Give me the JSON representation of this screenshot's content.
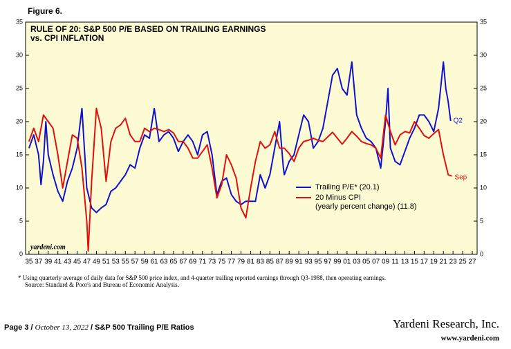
{
  "figure_label": "Figure 6.",
  "chart_data": {
    "type": "line",
    "title": [
      "RULE OF 20: S&P 500 P/E BASED ON TRAILING EARNINGS",
      "vs. CPI INFLATION"
    ],
    "xlim": [
      1934.3,
      2028
    ],
    "ylim": [
      0,
      35
    ],
    "yticks": [
      0,
      5,
      10,
      15,
      20,
      25,
      30,
      35
    ],
    "xticks": [
      {
        "value": 1935,
        "label": "35"
      },
      {
        "value": 1937,
        "label": "37"
      },
      {
        "value": 1939,
        "label": "39"
      },
      {
        "value": 1941,
        "label": "41"
      },
      {
        "value": 1943,
        "label": "43"
      },
      {
        "value": 1945,
        "label": "45"
      },
      {
        "value": 1947,
        "label": "47"
      },
      {
        "value": 1949,
        "label": "49"
      },
      {
        "value": 1951,
        "label": "51"
      },
      {
        "value": 1953,
        "label": "53"
      },
      {
        "value": 1955,
        "label": "55"
      },
      {
        "value": 1957,
        "label": "57"
      },
      {
        "value": 1959,
        "label": "59"
      },
      {
        "value": 1961,
        "label": "61"
      },
      {
        "value": 1963,
        "label": "63"
      },
      {
        "value": 1965,
        "label": "65"
      },
      {
        "value": 1967,
        "label": "67"
      },
      {
        "value": 1969,
        "label": "69"
      },
      {
        "value": 1971,
        "label": "71"
      },
      {
        "value": 1973,
        "label": "73"
      },
      {
        "value": 1975,
        "label": "75"
      },
      {
        "value": 1977,
        "label": "77"
      },
      {
        "value": 1979,
        "label": "79"
      },
      {
        "value": 1981,
        "label": "81"
      },
      {
        "value": 1983,
        "label": "83"
      },
      {
        "value": 1985,
        "label": "85"
      },
      {
        "value": 1987,
        "label": "87"
      },
      {
        "value": 1989,
        "label": "89"
      },
      {
        "value": 1991,
        "label": "91"
      },
      {
        "value": 1993,
        "label": "93"
      },
      {
        "value": 1995,
        "label": "95"
      },
      {
        "value": 1997,
        "label": "97"
      },
      {
        "value": 1999,
        "label": "99"
      },
      {
        "value": 2001,
        "label": "01"
      },
      {
        "value": 2003,
        "label": "03"
      },
      {
        "value": 2005,
        "label": "05"
      },
      {
        "value": 2007,
        "label": "07"
      },
      {
        "value": 2009,
        "label": "09"
      },
      {
        "value": 2011,
        "label": "11"
      },
      {
        "value": 2013,
        "label": "13"
      },
      {
        "value": 2015,
        "label": "15"
      },
      {
        "value": 2017,
        "label": "17"
      },
      {
        "value": 2019,
        "label": "19"
      },
      {
        "value": 2021,
        "label": "21"
      },
      {
        "value": 2023,
        "label": "23"
      },
      {
        "value": 2025,
        "label": "25"
      },
      {
        "value": 2027,
        "label": "27"
      }
    ],
    "series": [
      {
        "name": [
          "Trailing P/E* (20.1)"
        ],
        "color": "#1010d0",
        "end_label": "Q2",
        "x": [
          1935,
          1936,
          1937,
          1937.5,
          1938,
          1938.5,
          1939,
          1940,
          1941,
          1942,
          1943,
          1944,
          1945,
          1946,
          1946.5,
          1947,
          1948,
          1949,
          1950,
          1951,
          1952,
          1953,
          1954,
          1955,
          1956,
          1957,
          1958,
          1959,
          1960,
          1961,
          1962,
          1963,
          1964,
          1965,
          1966,
          1967,
          1968,
          1969,
          1970,
          1971,
          1972,
          1973,
          1974,
          1975,
          1976,
          1977,
          1978,
          1979,
          1980,
          1981,
          1982,
          1983,
          1984,
          1985,
          1986,
          1987,
          1987.8,
          1988,
          1989,
          1990,
          1991,
          1992,
          1993,
          1994,
          1995,
          1996,
          1997,
          1998,
          1999,
          2000,
          2001,
          2002,
          2003,
          2004,
          2005,
          2006,
          2007,
          2008,
          2009,
          2009.5,
          2010,
          2011,
          2012,
          2013,
          2014,
          2015,
          2016,
          2017,
          2018,
          2019,
          2020,
          2021,
          2021.5,
          2022,
          2022.5
        ],
        "values": [
          16,
          18,
          15,
          10.5,
          14,
          20,
          15,
          12,
          9.5,
          8,
          11,
          13,
          16,
          22,
          16,
          10,
          7,
          6.3,
          7,
          7.5,
          9.5,
          10,
          11,
          12,
          13.5,
          13,
          16,
          18,
          17.5,
          22,
          17,
          18,
          18.5,
          17.5,
          15.5,
          17,
          18,
          17,
          15,
          18,
          18.5,
          15,
          9,
          11,
          11.5,
          9,
          8,
          7.5,
          8,
          8,
          8,
          12,
          10,
          12,
          16,
          20,
          13,
          12,
          14,
          15,
          18,
          21,
          20,
          16,
          17,
          19,
          23,
          27,
          28,
          25,
          24,
          29,
          21,
          19,
          17.5,
          17,
          16,
          13,
          20,
          25,
          16,
          14,
          13.5,
          15.5,
          17.5,
          19,
          21,
          21,
          20,
          18.5,
          22,
          29,
          25,
          23,
          20.1
        ]
      },
      {
        "name": [
          "20 Minus CPI",
          "(yearly percent change) (11.8)"
        ],
        "color": "#e01010",
        "end_label": "Sep",
        "x": [
          1935,
          1936,
          1937,
          1938,
          1939,
          1940,
          1941,
          1942,
          1943,
          1944,
          1945,
          1946,
          1947,
          1947.3,
          1948,
          1949,
          1950,
          1951,
          1952,
          1953,
          1954,
          1955,
          1956,
          1957,
          1958,
          1959,
          1960,
          1961,
          1962,
          1963,
          1964,
          1965,
          1966,
          1967,
          1968,
          1969,
          1970,
          1971,
          1972,
          1973,
          1974,
          1975,
          1976,
          1977,
          1978,
          1979,
          1980,
          1981,
          1982,
          1983,
          1984,
          1985,
          1986,
          1987,
          1988,
          1989,
          1990,
          1991,
          1992,
          1993,
          1994,
          1995,
          1996,
          1997,
          1998,
          1999,
          2000,
          2001,
          2002,
          2003,
          2004,
          2005,
          2006,
          2007,
          2008,
          2009,
          2010,
          2011,
          2012,
          2013,
          2014,
          2015,
          2016,
          2017,
          2018,
          2019,
          2020,
          2021,
          2022,
          2022.75
        ],
        "values": [
          17,
          19,
          17,
          21,
          20,
          19,
          15,
          10,
          14,
          18,
          17.5,
          13,
          5,
          0.5,
          11,
          22,
          19,
          11,
          17,
          19,
          19.5,
          20.5,
          18,
          17,
          17,
          19,
          18.5,
          19,
          18.8,
          18.5,
          18.8,
          18.3,
          17,
          17,
          16,
          14.5,
          14.5,
          15.5,
          16.5,
          13,
          8.5,
          10.5,
          15,
          13.5,
          11.5,
          7,
          5.5,
          10,
          14,
          17,
          16,
          16.5,
          18.5,
          16,
          16,
          15.2,
          14,
          16,
          17,
          17.2,
          17.5,
          17.2,
          17,
          17.7,
          18.4,
          17.5,
          16.6,
          17.5,
          18.5,
          17.8,
          17,
          16.7,
          16.5,
          16,
          14.5,
          21,
          18.5,
          16.5,
          18,
          18.5,
          18.3,
          20,
          19,
          17.9,
          17.5,
          18.2,
          18.8,
          15,
          12,
          11.8
        ]
      }
    ],
    "watermark": "yardeni.com",
    "legend": "right"
  },
  "footnotes": [
    "*  Using quarterly average of daily data for S&P 500 price index, and 4-quarter trailing reported earnings through Q3-1988, then operating earnings.",
    "Source: Standard & Poor's and Bureau of Economic Analysis."
  ],
  "footer": {
    "page": "Page 3 /",
    "date": "October 13, 2022",
    "topic": "/  S&P 500 Trailing P/E Ratios",
    "company": "Yardeni Research, Inc.",
    "url": "www.yardeni.com"
  }
}
